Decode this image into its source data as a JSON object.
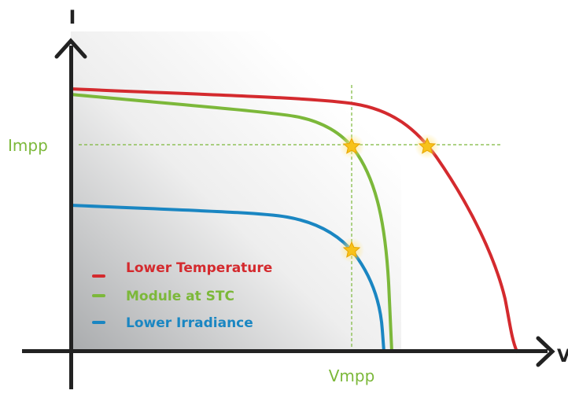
{
  "axes": {
    "y_label": "I",
    "x_label": "V"
  },
  "markers": {
    "current": "Impp",
    "voltage": "Vmpp"
  },
  "legend": [
    {
      "label": "Lower Temperature",
      "color": "#d42a2e"
    },
    {
      "label": "Module at STC",
      "color": "#7cb83a"
    },
    {
      "label": "Lower Irradiance",
      "color": "#1a86c2"
    }
  ]
}
